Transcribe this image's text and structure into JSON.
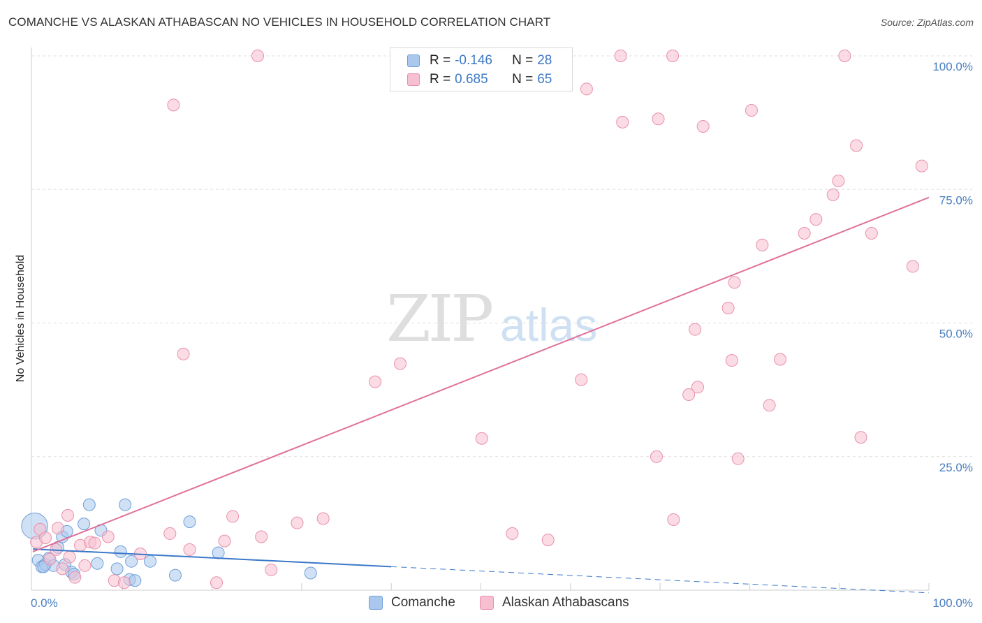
{
  "header": {
    "title": "COMANCHE VS ALASKAN ATHABASCAN NO VEHICLES IN HOUSEHOLD CORRELATION CHART",
    "source": "Source: ZipAtlas.com"
  },
  "watermark": {
    "zip": "ZIP",
    "atlas": "atlas"
  },
  "legend": {
    "rows": [
      {
        "r_label": "R =",
        "r_value": "-0.146",
        "n_label": "N =",
        "n_value": "28"
      },
      {
        "r_label": "R =",
        "r_value": "0.685",
        "n_label": "N =",
        "n_value": "65"
      }
    ]
  },
  "bottom_legend": [
    {
      "label": "Comanche"
    },
    {
      "label": "Alaskan Athabascans"
    }
  ],
  "colors": {
    "comanche_fill": "#aac8ee",
    "comanche_stroke": "#6f9fd8",
    "comanche_line": "#3a78c9",
    "athabascan_fill": "#f7bfd0",
    "athabascan_stroke": "#e98fac",
    "athabascan_line": "#e0709a",
    "grid": "#dddddd",
    "tick_label": "#4a7fc1"
  },
  "chart_data": {
    "type": "scatter",
    "title": "COMANCHE VS ALASKAN ATHABASCAN NO VEHICLES IN HOUSEHOLD CORRELATION CHART",
    "xlabel": "",
    "ylabel": "No Vehicles in Household",
    "xlim": [
      0,
      100
    ],
    "ylim": [
      0,
      100
    ],
    "x_tick_labels": [
      "0.0%",
      "100.0%"
    ],
    "y_ticks": [
      25,
      50,
      75,
      100
    ],
    "y_tick_labels": [
      "25.0%",
      "50.0%",
      "75.0%",
      "100.0%"
    ],
    "grid": true,
    "legend_position": "top-center",
    "series": [
      {
        "name": "Comanche",
        "r": -0.146,
        "n": 28,
        "trend": {
          "x0": 0,
          "y0": 7.7,
          "x1": 40,
          "y1": 4.4,
          "dashed_to_x": 100,
          "dashed_to_y": -0.5
        },
        "points": [
          [
            0.2,
            12.0,
            2.2
          ],
          [
            0.6,
            5.6,
            1
          ],
          [
            1.0,
            4.4,
            1
          ],
          [
            1.4,
            4.8,
            1
          ],
          [
            1.8,
            6.0,
            1
          ],
          [
            2.3,
            4.6,
            1
          ],
          [
            2.8,
            8.0,
            1
          ],
          [
            3.3,
            10.0,
            1
          ],
          [
            3.6,
            4.8,
            1
          ],
          [
            3.8,
            11.0,
            1
          ],
          [
            4.3,
            3.4,
            1
          ],
          [
            4.6,
            3.0,
            1
          ],
          [
            5.7,
            12.4,
            1
          ],
          [
            6.3,
            16.0,
            1
          ],
          [
            7.2,
            5.0,
            1
          ],
          [
            7.6,
            11.2,
            1
          ],
          [
            9.4,
            4.0,
            1
          ],
          [
            9.8,
            7.2,
            1
          ],
          [
            10.3,
            16.0,
            1
          ],
          [
            10.8,
            2.0,
            1
          ],
          [
            11.0,
            5.4,
            1
          ],
          [
            11.4,
            1.8,
            1
          ],
          [
            13.1,
            5.4,
            1
          ],
          [
            15.9,
            2.8,
            1
          ],
          [
            17.5,
            12.8,
            1
          ],
          [
            20.7,
            7.0,
            1
          ],
          [
            31.0,
            3.2,
            1
          ],
          [
            1.2,
            4.4,
            1
          ]
        ]
      },
      {
        "name": "Alaskan Athabascans",
        "r": 0.685,
        "n": 65,
        "trend": {
          "x0": 0,
          "y0": 7.2,
          "x1": 100,
          "y1": 73.5
        },
        "points": [
          [
            0.4,
            9.0,
            1
          ],
          [
            0.8,
            11.4,
            1
          ],
          [
            1.4,
            9.8,
            1
          ],
          [
            1.9,
            5.8,
            1
          ],
          [
            2.6,
            7.6,
            1
          ],
          [
            2.8,
            11.6,
            1
          ],
          [
            3.3,
            4.0,
            1
          ],
          [
            3.9,
            14.0,
            1
          ],
          [
            4.1,
            6.2,
            1
          ],
          [
            4.7,
            2.4,
            1
          ],
          [
            5.3,
            8.4,
            1
          ],
          [
            5.8,
            4.6,
            1
          ],
          [
            6.4,
            9.0,
            1
          ],
          [
            6.9,
            8.8,
            1
          ],
          [
            8.4,
            10.0,
            1
          ],
          [
            9.1,
            1.8,
            1
          ],
          [
            10.2,
            1.4,
            1
          ],
          [
            12.0,
            6.8,
            1
          ],
          [
            15.3,
            10.6,
            1
          ],
          [
            15.7,
            90.8,
            1
          ],
          [
            16.8,
            44.2,
            1
          ],
          [
            17.5,
            7.6,
            1
          ],
          [
            20.5,
            1.4,
            1
          ],
          [
            21.4,
            9.2,
            1
          ],
          [
            22.3,
            13.8,
            1
          ],
          [
            25.1,
            100.0,
            1
          ],
          [
            25.5,
            10.0,
            1
          ],
          [
            26.6,
            3.8,
            1
          ],
          [
            29.5,
            12.6,
            1
          ],
          [
            32.4,
            13.4,
            1
          ],
          [
            38.2,
            39.0,
            1
          ],
          [
            41.0,
            42.4,
            1
          ],
          [
            50.1,
            28.4,
            1
          ],
          [
            53.5,
            10.6,
            1
          ],
          [
            57.5,
            9.4,
            1
          ],
          [
            61.2,
            39.4,
            1
          ],
          [
            61.8,
            93.8,
            1
          ],
          [
            65.6,
            100.0,
            1
          ],
          [
            65.8,
            87.6,
            1
          ],
          [
            69.6,
            25.0,
            1
          ],
          [
            69.8,
            88.2,
            1
          ],
          [
            71.4,
            100.0,
            1
          ],
          [
            71.5,
            13.2,
            1
          ],
          [
            73.2,
            36.6,
            1
          ],
          [
            74.2,
            38.0,
            1
          ],
          [
            74.8,
            86.8,
            1
          ],
          [
            73.9,
            48.8,
            1
          ],
          [
            77.6,
            52.8,
            1
          ],
          [
            78.0,
            43.0,
            1
          ],
          [
            78.3,
            57.6,
            1
          ],
          [
            78.7,
            24.6,
            1
          ],
          [
            81.4,
            64.6,
            1
          ],
          [
            80.2,
            89.8,
            1
          ],
          [
            82.2,
            34.6,
            1
          ],
          [
            83.4,
            43.2,
            1
          ],
          [
            86.1,
            66.8,
            1
          ],
          [
            87.4,
            69.4,
            1
          ],
          [
            89.3,
            74.0,
            1
          ],
          [
            89.9,
            76.6,
            1
          ],
          [
            90.6,
            100.0,
            1
          ],
          [
            91.9,
            83.2,
            1
          ],
          [
            92.4,
            28.6,
            1
          ],
          [
            93.6,
            66.8,
            1
          ],
          [
            98.2,
            60.6,
            1
          ],
          [
            99.2,
            79.4,
            1
          ]
        ]
      }
    ]
  }
}
